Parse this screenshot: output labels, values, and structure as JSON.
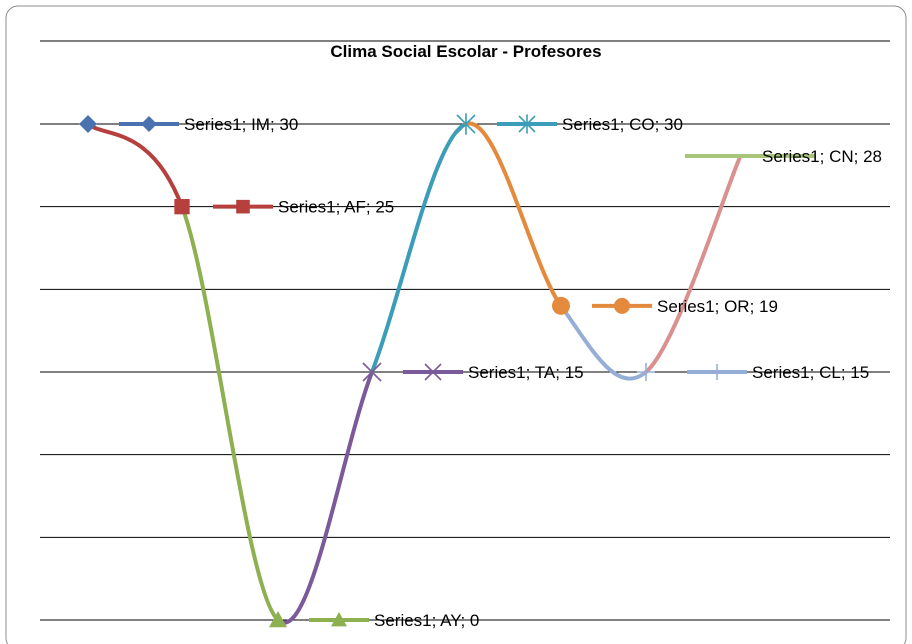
{
  "chart_data": {
    "type": "line",
    "title": "Clima Social Escolar - Profesores",
    "xlabel": "",
    "ylabel": "",
    "ylim": [
      0,
      30
    ],
    "grid": true,
    "smooth": true,
    "categories": [
      "IM",
      "AF",
      "AY",
      "TA",
      "CO",
      "OR",
      "CL",
      "CN"
    ],
    "series": [
      {
        "name": "Series1",
        "values": [
          30,
          25,
          0,
          15,
          30,
          19,
          15,
          28
        ]
      }
    ],
    "data_labels": [
      "Series1; IM; 30",
      "Series1; AF; 25",
      "Series1; AY; 0",
      "Series1; TA; 15",
      "Series1; CO; 30",
      "Series1; OR; 19",
      "Series1; CL; 15",
      "Series1; CN; 28"
    ],
    "point_colors": [
      "#4a72b0",
      "#b5403d",
      "#8db050",
      "#7c5a9a",
      "#3c9db8",
      "#e38a3c",
      "#96aed6",
      "#d9908f"
    ],
    "point_markers": [
      "diamond",
      "square",
      "triangle",
      "x",
      "asterisk",
      "circle",
      "plus",
      "none"
    ],
    "legend_line_colors": [
      "#4a72b0",
      "#b5403d",
      "#8db050",
      "#7c5a9a",
      "#3c9db8",
      "#e38a3c",
      "#96aed6",
      "#a8c67a"
    ]
  }
}
